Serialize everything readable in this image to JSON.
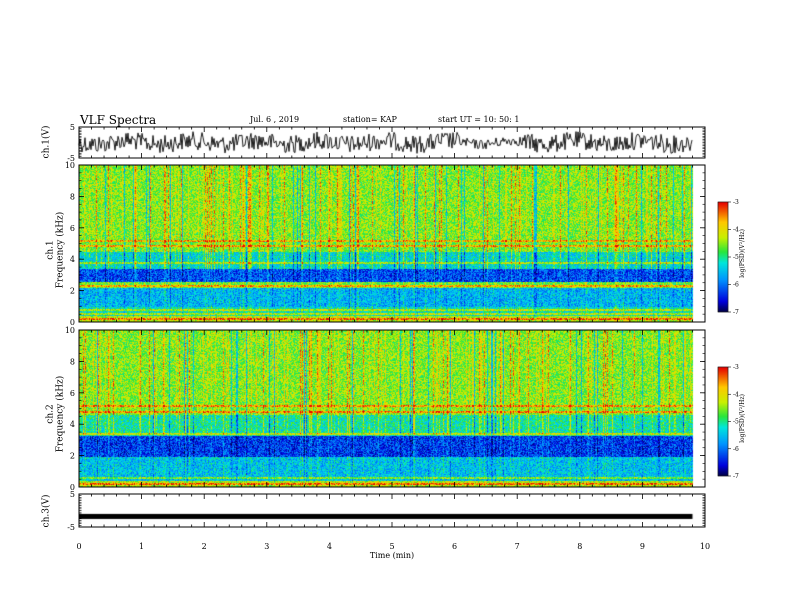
{
  "header": {
    "title": "VLF Spectra",
    "date": "Jul. 6 , 2019",
    "station": "station= KAP",
    "start_ut": "start UT =  10: 50: 1"
  },
  "chart_data": [
    {
      "panel": "ch1-waveform",
      "type": "line",
      "ylabel": "ch.1(V)",
      "ylim": [
        -5,
        5
      ],
      "yticks": [
        "5",
        "-5"
      ],
      "xlim": [
        0,
        10
      ],
      "x_end": 9.8,
      "description_color": "#000000"
    },
    {
      "panel": "ch1-spectrogram",
      "type": "heatmap",
      "ylabel": "ch.1\nFrequency (kHz)",
      "ylabel_lines": [
        "ch.1",
        "Frequency (kHz)"
      ],
      "ylim": [
        0,
        10
      ],
      "yticks": [
        "0",
        "2",
        "4",
        "6",
        "8",
        "10"
      ],
      "xlim": [
        0,
        10
      ],
      "x_end": 9.8,
      "colorbar": {
        "min": -7,
        "max": -3,
        "ticks": [
          "-3",
          "-4",
          "-5",
          "-6",
          "-7"
        ],
        "label": "log(PSD)(V²/Hz)"
      },
      "bands": [
        {
          "f0": 0,
          "f1": 0.4,
          "level": -4.3
        },
        {
          "f0": 0.4,
          "f1": 1.0,
          "level": -5.2
        },
        {
          "f0": 1.0,
          "f1": 2.2,
          "level": -5.6
        },
        {
          "f0": 2.2,
          "f1": 2.6,
          "level": -4.6
        },
        {
          "f0": 2.6,
          "f1": 3.4,
          "level": -6.2
        },
        {
          "f0": 3.4,
          "f1": 4.5,
          "level": -5.3
        },
        {
          "f0": 4.5,
          "f1": 5.3,
          "level": -4.6
        },
        {
          "f0": 5.3,
          "f1": 10,
          "level": -4.5
        }
      ],
      "lines_khz": [
        0.2,
        0.55,
        0.8,
        2.3,
        3.8,
        4.9,
        5.2
      ]
    },
    {
      "panel": "ch2-spectrogram",
      "type": "heatmap",
      "ylabel_lines": [
        "ch.2",
        "Frequency (kHz)"
      ],
      "ylim": [
        0,
        10
      ],
      "yticks": [
        "0",
        "2",
        "4",
        "6",
        "8",
        "10"
      ],
      "xlim": [
        0,
        10
      ],
      "x_end": 9.8,
      "colorbar": {
        "min": -7,
        "max": -3,
        "ticks": [
          "-3",
          "-4",
          "-5",
          "-6",
          "-7"
        ],
        "label": "log(PSD)(V²/Hz)"
      },
      "bands": [
        {
          "f0": 0,
          "f1": 0.4,
          "level": -4.3
        },
        {
          "f0": 0.4,
          "f1": 1.8,
          "level": -5.5
        },
        {
          "f0": 1.8,
          "f1": 3.3,
          "level": -6.3
        },
        {
          "f0": 3.3,
          "f1": 4.6,
          "level": -5.1
        },
        {
          "f0": 4.6,
          "f1": 10,
          "level": -4.5
        }
      ],
      "lines_khz": [
        0.2,
        0.6,
        1.9,
        3.4,
        4.8,
        5.2
      ]
    },
    {
      "panel": "ch3-waveform",
      "type": "line",
      "ylabel": "ch.3(V)",
      "ylim": [
        -5,
        5
      ],
      "yticks": [
        "5",
        "-5"
      ],
      "xlim": [
        0,
        10
      ],
      "x_end": 9.8,
      "constant_value": -1.8
    }
  ],
  "xaxis": {
    "label": "Time (min)",
    "ticks": [
      "0",
      "1",
      "2",
      "3",
      "4",
      "5",
      "6",
      "7",
      "8",
      "9",
      "10"
    ]
  }
}
